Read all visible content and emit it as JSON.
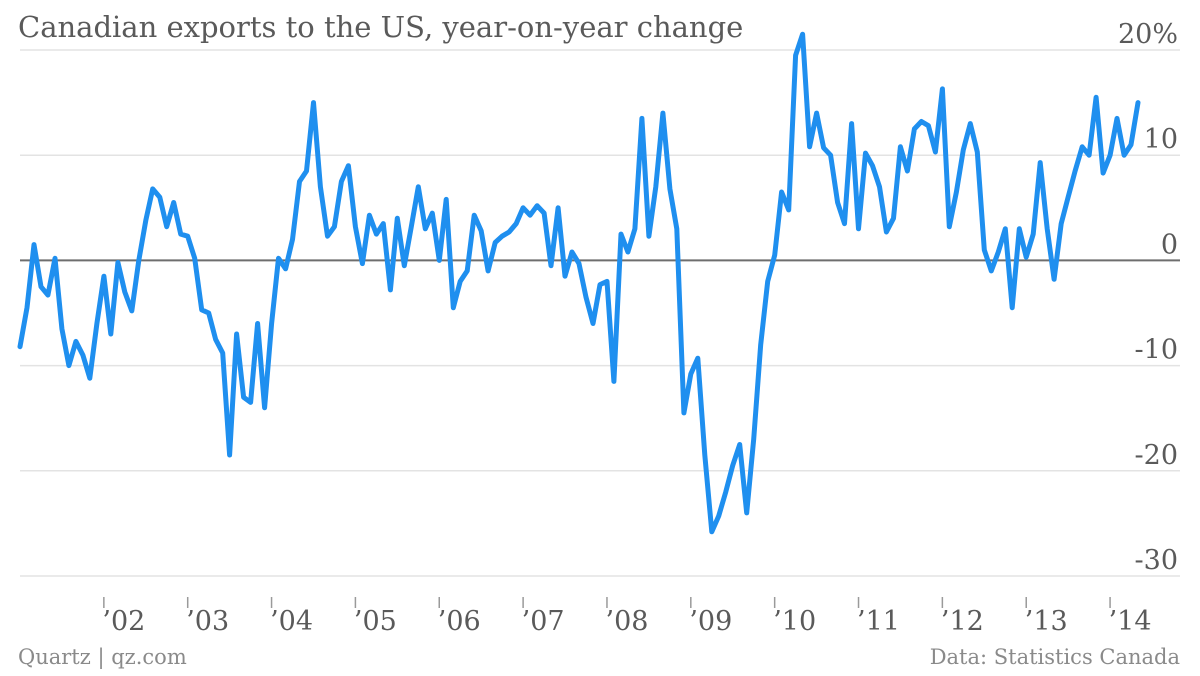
{
  "title": "Canadian exports to the US, year-on-year change",
  "footer": {
    "source_left": "Quartz | qz.com",
    "source_right": "Data: Statistics Canada"
  },
  "chart_data": {
    "type": "line",
    "title": "Canadian exports to the US, year-on-year change",
    "xlabel": "",
    "ylabel": "",
    "ylim": [
      -30,
      20
    ],
    "y_ticks": [
      {
        "value": 20,
        "label": "20%"
      },
      {
        "value": 10,
        "label": "10"
      },
      {
        "value": 0,
        "label": "0"
      },
      {
        "value": -10,
        "label": "-10"
      },
      {
        "value": -20,
        "label": "-20"
      },
      {
        "value": -30,
        "label": "-30"
      }
    ],
    "x_ticks": [
      {
        "value": 2002,
        "label": "’02"
      },
      {
        "value": 2003,
        "label": "’03"
      },
      {
        "value": 2004,
        "label": "’04"
      },
      {
        "value": 2005,
        "label": "’05"
      },
      {
        "value": 2006,
        "label": "’06"
      },
      {
        "value": 2007,
        "label": "’07"
      },
      {
        "value": 2008,
        "label": "’08"
      },
      {
        "value": 2009,
        "label": "’09"
      },
      {
        "value": 2010,
        "label": "’10"
      },
      {
        "value": 2011,
        "label": "’11"
      },
      {
        "value": 2012,
        "label": "’12"
      },
      {
        "value": 2013,
        "label": "’13"
      },
      {
        "value": 2014,
        "label": "’14"
      }
    ],
    "grid": true,
    "legend": "none",
    "line_color": "#1f8fef",
    "series": [
      {
        "values": [
          [
            2001.0,
            -8.2
          ],
          [
            2001.083,
            -4.5
          ],
          [
            2001.167,
            1.5
          ],
          [
            2001.25,
            -2.5
          ],
          [
            2001.333,
            -3.3
          ],
          [
            2001.417,
            0.2
          ],
          [
            2001.5,
            -6.5
          ],
          [
            2001.583,
            -10.0
          ],
          [
            2001.667,
            -7.7
          ],
          [
            2001.75,
            -9.0
          ],
          [
            2001.833,
            -11.2
          ],
          [
            2001.917,
            -6.0
          ],
          [
            2002.0,
            -1.5
          ],
          [
            2002.083,
            -7.0
          ],
          [
            2002.167,
            -0.2
          ],
          [
            2002.25,
            -3.0
          ],
          [
            2002.333,
            -4.8
          ],
          [
            2002.417,
            0.0
          ],
          [
            2002.5,
            3.8
          ],
          [
            2002.583,
            6.8
          ],
          [
            2002.667,
            6.0
          ],
          [
            2002.75,
            3.2
          ],
          [
            2002.833,
            5.5
          ],
          [
            2002.917,
            2.5
          ],
          [
            2003.0,
            2.3
          ],
          [
            2003.083,
            0.2
          ],
          [
            2003.167,
            -4.7
          ],
          [
            2003.25,
            -5.0
          ],
          [
            2003.333,
            -7.5
          ],
          [
            2003.417,
            -8.8
          ],
          [
            2003.5,
            -18.5
          ],
          [
            2003.583,
            -7.0
          ],
          [
            2003.667,
            -13.0
          ],
          [
            2003.75,
            -13.5
          ],
          [
            2003.833,
            -6.0
          ],
          [
            2003.917,
            -14.0
          ],
          [
            2004.0,
            -6.0
          ],
          [
            2004.083,
            0.2
          ],
          [
            2004.167,
            -0.8
          ],
          [
            2004.25,
            2.0
          ],
          [
            2004.333,
            7.5
          ],
          [
            2004.417,
            8.5
          ],
          [
            2004.5,
            15.0
          ],
          [
            2004.583,
            7.0
          ],
          [
            2004.667,
            2.3
          ],
          [
            2004.75,
            3.2
          ],
          [
            2004.833,
            7.5
          ],
          [
            2004.917,
            9.0
          ],
          [
            2005.0,
            3.2
          ],
          [
            2005.083,
            -0.3
          ],
          [
            2005.167,
            4.3
          ],
          [
            2005.25,
            2.5
          ],
          [
            2005.333,
            3.5
          ],
          [
            2005.417,
            -2.8
          ],
          [
            2005.5,
            4.0
          ],
          [
            2005.583,
            -0.5
          ],
          [
            2005.667,
            3.2
          ],
          [
            2005.75,
            7.0
          ],
          [
            2005.833,
            3.0
          ],
          [
            2005.917,
            4.5
          ],
          [
            2006.0,
            0.0
          ],
          [
            2006.083,
            5.8
          ],
          [
            2006.167,
            -4.5
          ],
          [
            2006.25,
            -2.0
          ],
          [
            2006.333,
            -1.0
          ],
          [
            2006.417,
            4.3
          ],
          [
            2006.5,
            2.8
          ],
          [
            2006.583,
            -1.0
          ],
          [
            2006.667,
            1.7
          ],
          [
            2006.75,
            2.3
          ],
          [
            2006.833,
            2.7
          ],
          [
            2006.917,
            3.5
          ],
          [
            2007.0,
            5.0
          ],
          [
            2007.083,
            4.3
          ],
          [
            2007.167,
            5.2
          ],
          [
            2007.25,
            4.5
          ],
          [
            2007.333,
            -0.5
          ],
          [
            2007.417,
            5.0
          ],
          [
            2007.5,
            -1.5
          ],
          [
            2007.583,
            0.8
          ],
          [
            2007.667,
            -0.3
          ],
          [
            2007.75,
            -3.5
          ],
          [
            2007.833,
            -6.0
          ],
          [
            2007.917,
            -2.3
          ],
          [
            2008.0,
            -2.0
          ],
          [
            2008.083,
            -11.5
          ],
          [
            2008.167,
            2.5
          ],
          [
            2008.25,
            0.8
          ],
          [
            2008.333,
            3.0
          ],
          [
            2008.417,
            13.5
          ],
          [
            2008.5,
            2.3
          ],
          [
            2008.583,
            7.0
          ],
          [
            2008.667,
            14.0
          ],
          [
            2008.75,
            6.8
          ],
          [
            2008.833,
            3.0
          ],
          [
            2008.917,
            -14.5
          ],
          [
            2009.0,
            -10.8
          ],
          [
            2009.083,
            -9.3
          ],
          [
            2009.167,
            -18.5
          ],
          [
            2009.25,
            -25.8
          ],
          [
            2009.333,
            -24.3
          ],
          [
            2009.417,
            -22.0
          ],
          [
            2009.5,
            -19.5
          ],
          [
            2009.583,
            -17.5
          ],
          [
            2009.667,
            -24.0
          ],
          [
            2009.75,
            -17.0
          ],
          [
            2009.833,
            -8.0
          ],
          [
            2009.917,
            -2.0
          ],
          [
            2010.0,
            0.5
          ],
          [
            2010.083,
            6.5
          ],
          [
            2010.167,
            4.8
          ],
          [
            2010.25,
            19.5
          ],
          [
            2010.333,
            21.5
          ],
          [
            2010.417,
            10.8
          ],
          [
            2010.5,
            14.0
          ],
          [
            2010.583,
            10.7
          ],
          [
            2010.667,
            10.0
          ],
          [
            2010.75,
            5.5
          ],
          [
            2010.833,
            3.5
          ],
          [
            2010.917,
            13.0
          ],
          [
            2011.0,
            3.0
          ],
          [
            2011.083,
            10.2
          ],
          [
            2011.167,
            9.0
          ],
          [
            2011.25,
            7.0
          ],
          [
            2011.333,
            2.7
          ],
          [
            2011.417,
            4.0
          ],
          [
            2011.5,
            10.8
          ],
          [
            2011.583,
            8.5
          ],
          [
            2011.667,
            12.5
          ],
          [
            2011.75,
            13.2
          ],
          [
            2011.833,
            12.8
          ],
          [
            2011.917,
            10.3
          ],
          [
            2012.0,
            16.3
          ],
          [
            2012.083,
            3.2
          ],
          [
            2012.167,
            6.5
          ],
          [
            2012.25,
            10.5
          ],
          [
            2012.333,
            13.0
          ],
          [
            2012.417,
            10.3
          ],
          [
            2012.5,
            1.0
          ],
          [
            2012.583,
            -1.0
          ],
          [
            2012.667,
            0.8
          ],
          [
            2012.75,
            3.0
          ],
          [
            2012.833,
            -4.5
          ],
          [
            2012.917,
            3.0
          ],
          [
            2013.0,
            0.3
          ],
          [
            2013.083,
            2.5
          ],
          [
            2013.167,
            9.3
          ],
          [
            2013.25,
            3.0
          ],
          [
            2013.333,
            -1.8
          ],
          [
            2013.417,
            3.5
          ],
          [
            2013.5,
            6.0
          ],
          [
            2013.583,
            8.5
          ],
          [
            2013.667,
            10.8
          ],
          [
            2013.75,
            10.0
          ],
          [
            2013.833,
            15.5
          ],
          [
            2013.917,
            8.3
          ],
          [
            2014.0,
            10.0
          ],
          [
            2014.083,
            13.5
          ],
          [
            2014.167,
            10.0
          ],
          [
            2014.25,
            11.0
          ],
          [
            2014.333,
            15.0
          ]
        ]
      }
    ]
  }
}
